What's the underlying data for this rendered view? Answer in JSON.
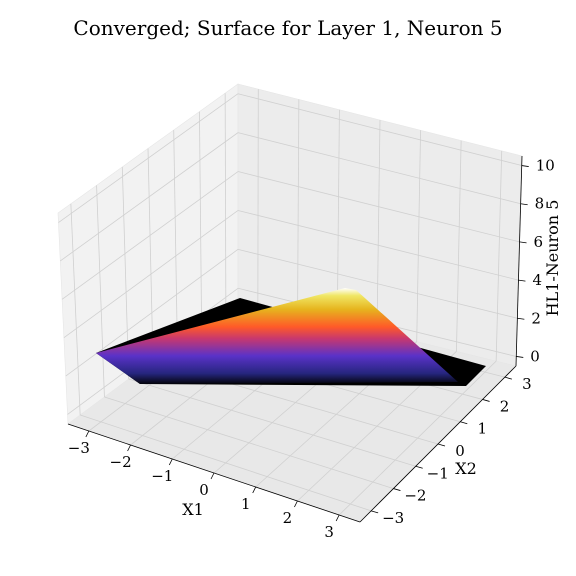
{
  "chart_data": {
    "type": "surface3d",
    "title": "Converged; Surface for Layer 1, Neuron 5",
    "xlabel": "X1",
    "ylabel": "X2",
    "zlabel": "HL1-Neuron 5",
    "xlim": [
      -3.5,
      3.5
    ],
    "ylim": [
      -3.5,
      3.5
    ],
    "zlim": [
      -0.5,
      10.5
    ],
    "xticks": [
      "−3",
      "−2",
      "−1",
      "0",
      "1",
      "2",
      "3"
    ],
    "yticks": [
      "−3",
      "−2",
      "−1",
      "0",
      "1",
      "2",
      "3"
    ],
    "zticks": [
      "0",
      "2",
      "4",
      "6",
      "8",
      "10"
    ],
    "grid": true,
    "colormap": "CMRmap",
    "surface": {
      "description": "ReLU-like planar ramp: zero on the far-side region, rising linearly to a peak near the back-right corner",
      "zero_region_color": "#000000",
      "colorbar_stops": [
        "#000000",
        "#26267f",
        "#5a32c8",
        "#c8386e",
        "#ff5a28",
        "#e6b41e",
        "#f0e664",
        "#ffffff"
      ]
    }
  }
}
